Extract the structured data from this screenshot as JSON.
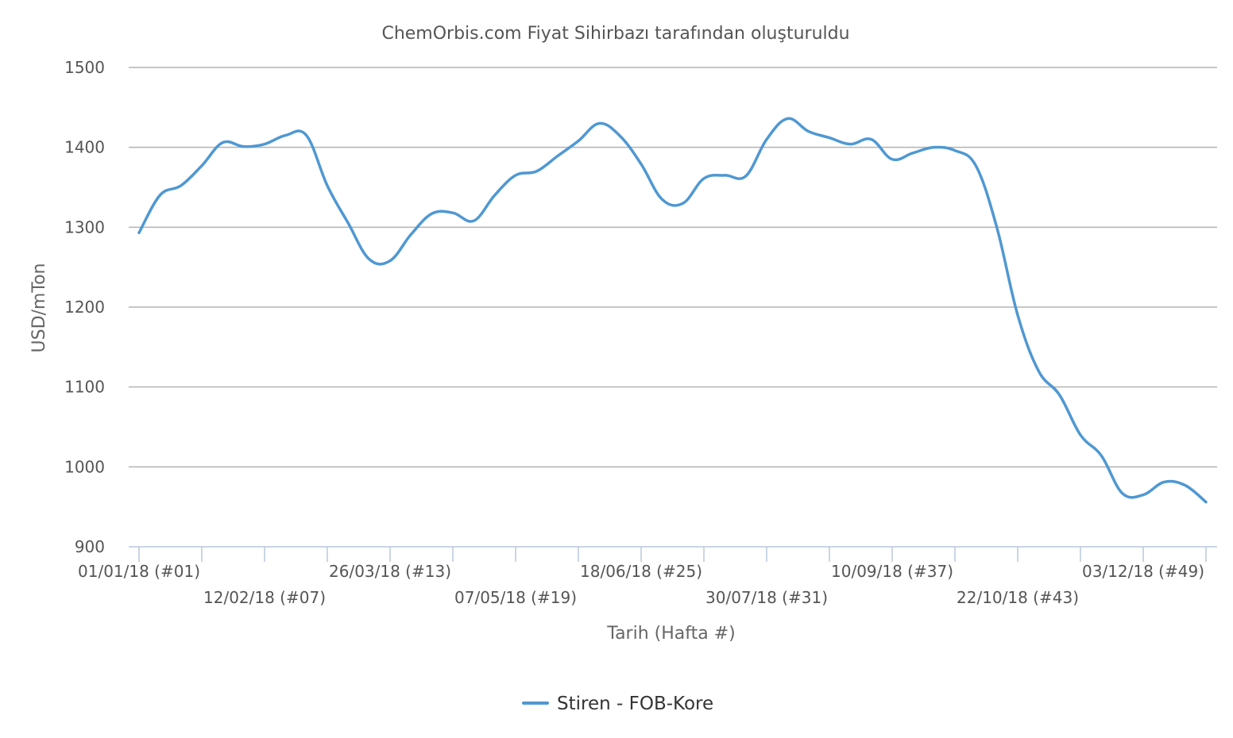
{
  "chart_data": {
    "type": "line",
    "title": "ChemOrbis.com Fiyat Sihirbazı tarafından oluşturuldu",
    "xlabel": "Tarih (Hafta #)",
    "ylabel": "USD/mTon",
    "ylim": [
      900,
      1500
    ],
    "yticks": [
      900,
      1000,
      1100,
      1200,
      1300,
      1400,
      1500
    ],
    "grid": true,
    "legend_position": "bottom-center",
    "x_tick_labels": [
      {
        "week": 1,
        "label": "01/01/18 (#01)"
      },
      {
        "week": 7,
        "label": "12/02/18 (#07)"
      },
      {
        "week": 13,
        "label": "26/03/18 (#13)"
      },
      {
        "week": 19,
        "label": "07/05/18 (#19)"
      },
      {
        "week": 25,
        "label": "18/06/18 (#25)"
      },
      {
        "week": 31,
        "label": "30/07/18 (#31)"
      },
      {
        "week": 37,
        "label": "10/09/18 (#37)"
      },
      {
        "week": 43,
        "label": "22/10/18 (#43)"
      },
      {
        "week": 49,
        "label": "03/12/18 (#49)"
      }
    ],
    "x_tick_weeks": [
      1,
      4,
      7,
      10,
      13,
      16,
      19,
      22,
      25,
      28,
      31,
      34,
      37,
      40,
      43,
      46,
      49,
      52
    ],
    "series": [
      {
        "name": "Stiren - FOB-Kore",
        "color": "#4f98d2",
        "x": [
          1,
          2,
          3,
          4,
          5,
          6,
          7,
          8,
          9,
          10,
          11,
          12,
          13,
          14,
          15,
          16,
          17,
          18,
          19,
          20,
          21,
          22,
          23,
          24,
          25,
          26,
          27,
          28,
          29,
          30,
          31,
          32,
          33,
          34,
          35,
          36,
          37,
          38,
          39,
          40,
          41,
          42,
          43,
          44,
          45,
          46,
          47,
          48,
          49,
          50,
          51,
          52
        ],
        "values": [
          1293,
          1340,
          1352,
          1377,
          1406,
          1401,
          1404,
          1415,
          1415,
          1352,
          1305,
          1260,
          1258,
          1291,
          1317,
          1318,
          1308,
          1340,
          1365,
          1370,
          1389,
          1408,
          1430,
          1414,
          1379,
          1335,
          1330,
          1361,
          1365,
          1364,
          1410,
          1436,
          1420,
          1412,
          1404,
          1410,
          1385,
          1393,
          1400,
          1396,
          1377,
          1300,
          1190,
          1120,
          1090,
          1040,
          1014,
          967,
          965,
          981,
          977,
          956
        ]
      }
    ]
  }
}
